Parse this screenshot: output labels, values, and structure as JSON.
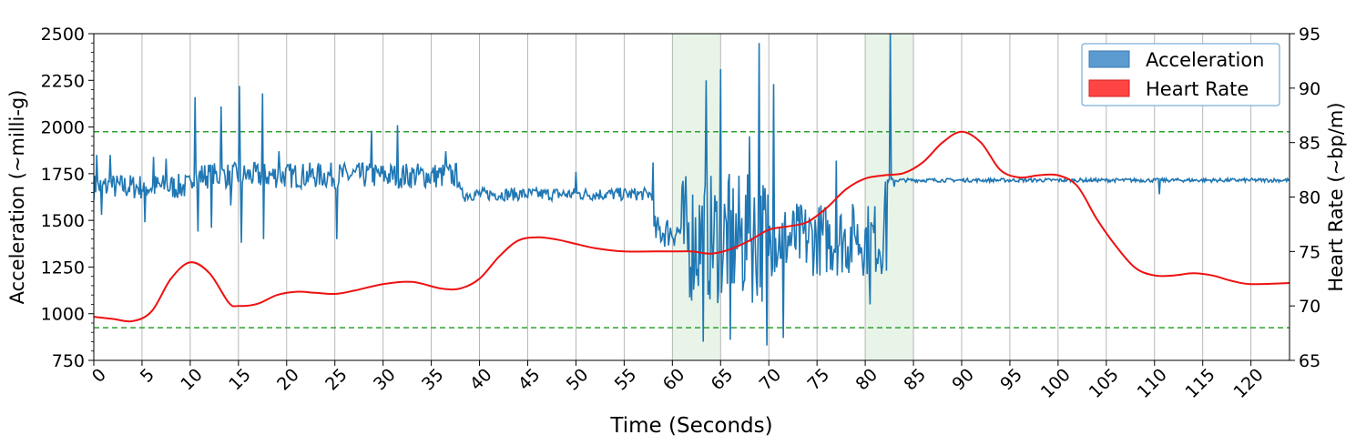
{
  "chart_data": {
    "type": "line",
    "xlabel": "Time (Seconds)",
    "ylabel_left": "Acceleration (~milli-g)",
    "ylabel_right": "Heart Rate (~bp/m)",
    "xlim": [
      0,
      124
    ],
    "ylim_left": [
      750,
      2500
    ],
    "ylim_right": [
      65,
      95
    ],
    "x_ticks": [
      0,
      5,
      10,
      15,
      20,
      25,
      30,
      35,
      40,
      45,
      50,
      55,
      60,
      65,
      70,
      75,
      80,
      85,
      90,
      95,
      100,
      105,
      110,
      115,
      120
    ],
    "y_ticks_left": [
      750,
      1000,
      1250,
      1500,
      1750,
      2000,
      2250,
      2500
    ],
    "y_ticks_right": [
      65,
      70,
      75,
      80,
      85,
      90,
      95
    ],
    "grid": "vertical",
    "legend_position": "top-right",
    "legend": [
      {
        "label": "Acceleration",
        "color": "#5b9bd0"
      },
      {
        "label": "Heart Rate",
        "color": "#ff4444"
      }
    ],
    "shaded_regions": [
      {
        "x_start": 60,
        "x_end": 65,
        "color": "#e8f4e8"
      },
      {
        "x_start": 80,
        "x_end": 85,
        "color": "#e8f4e8"
      }
    ],
    "threshold_lines": [
      {
        "axis": "right",
        "value": 86,
        "color": "#2ca02c",
        "style": "dashed"
      },
      {
        "axis": "right",
        "value": 68,
        "color": "#2ca02c",
        "style": "dashed"
      }
    ],
    "series": [
      {
        "name": "Heart Rate",
        "axis": "right",
        "color": "#ee1111",
        "x": [
          0,
          2,
          4,
          6,
          8,
          10,
          12,
          14,
          15,
          17,
          19,
          21,
          23,
          25,
          27,
          30,
          33,
          36,
          38,
          40,
          42,
          44,
          46,
          48,
          50,
          52,
          55,
          58,
          60,
          62,
          64,
          66,
          68,
          70,
          72,
          74,
          76,
          78,
          80,
          82,
          84,
          86,
          88,
          90,
          92,
          94,
          96,
          98,
          100,
          102,
          104,
          106,
          108,
          110,
          112,
          114,
          116,
          118,
          120,
          124
        ],
        "y": [
          69,
          68.8,
          68.6,
          69.5,
          72.5,
          74,
          73,
          70.3,
          70,
          70.2,
          71,
          71.3,
          71.2,
          71.1,
          71.4,
          72,
          72.2,
          71.6,
          71.6,
          72.5,
          74.5,
          76,
          76.3,
          76.1,
          75.7,
          75.3,
          75,
          75,
          75,
          75,
          74.8,
          75.2,
          76,
          77,
          77.3,
          77.7,
          79,
          80.7,
          81.7,
          82,
          82.2,
          83.2,
          85,
          86,
          85,
          82.5,
          81.8,
          82,
          82,
          81,
          78,
          75.5,
          73.5,
          72.8,
          72.8,
          73,
          72.8,
          72.3,
          72,
          72.1
        ]
      },
      {
        "name": "Acceleration",
        "axis": "left",
        "color": "#1f77b4",
        "x_step": 0.1,
        "segments": [
          {
            "x_start": 0,
            "x_end": 10,
            "base": 1680,
            "amp": 70
          },
          {
            "x_start": 10,
            "x_end": 38,
            "base": 1740,
            "amp": 70
          },
          {
            "x_start": 38,
            "x_end": 58,
            "base": 1640,
            "amp": 35
          },
          {
            "x_start": 58,
            "x_end": 61,
            "base": 1440,
            "amp": 90
          },
          {
            "x_start": 61,
            "x_end": 70,
            "base": 1400,
            "amp": 350
          },
          {
            "x_start": 70,
            "x_end": 82,
            "base": 1400,
            "amp": 200
          },
          {
            "x_start": 82,
            "x_end": 124,
            "base": 1715,
            "amp": 10
          }
        ],
        "spikes": [
          {
            "x": 0.3,
            "y": 1850
          },
          {
            "x": 0.8,
            "y": 1530
          },
          {
            "x": 1.7,
            "y": 1850
          },
          {
            "x": 5.3,
            "y": 1490
          },
          {
            "x": 6.2,
            "y": 1840
          },
          {
            "x": 7.5,
            "y": 1830
          },
          {
            "x": 10.5,
            "y": 2160
          },
          {
            "x": 10.8,
            "y": 1440
          },
          {
            "x": 12.2,
            "y": 1460
          },
          {
            "x": 13.2,
            "y": 2110
          },
          {
            "x": 14.2,
            "y": 1580
          },
          {
            "x": 15.1,
            "y": 2220
          },
          {
            "x": 15.3,
            "y": 1380
          },
          {
            "x": 17.5,
            "y": 2180
          },
          {
            "x": 17.6,
            "y": 1400
          },
          {
            "x": 19.2,
            "y": 1870
          },
          {
            "x": 25.2,
            "y": 1400
          },
          {
            "x": 28.8,
            "y": 1980
          },
          {
            "x": 31.5,
            "y": 2010
          },
          {
            "x": 36.5,
            "y": 1870
          },
          {
            "x": 38.5,
            "y": 1600
          },
          {
            "x": 50,
            "y": 1760
          },
          {
            "x": 58,
            "y": 1810
          },
          {
            "x": 63.5,
            "y": 2250
          },
          {
            "x": 63.2,
            "y": 850
          },
          {
            "x": 65,
            "y": 2310
          },
          {
            "x": 66,
            "y": 860
          },
          {
            "x": 68,
            "y": 1950
          },
          {
            "x": 69,
            "y": 2450
          },
          {
            "x": 69.8,
            "y": 830
          },
          {
            "x": 70.5,
            "y": 2230
          },
          {
            "x": 71.5,
            "y": 870
          },
          {
            "x": 77,
            "y": 1820
          },
          {
            "x": 79,
            "y": 1400
          },
          {
            "x": 80.5,
            "y": 1050
          },
          {
            "x": 82.2,
            "y": 1230
          },
          {
            "x": 82.6,
            "y": 2520
          },
          {
            "x": 83,
            "y": 1680
          },
          {
            "x": 110.5,
            "y": 1640
          }
        ]
      }
    ]
  }
}
